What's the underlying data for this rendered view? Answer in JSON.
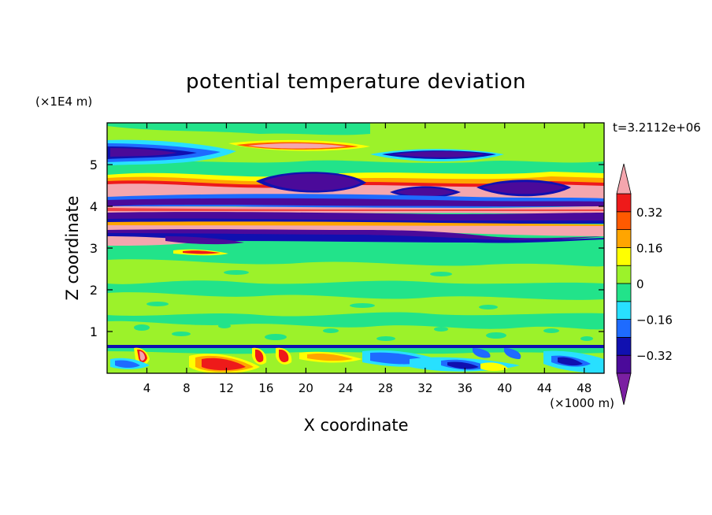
{
  "chart_data": {
    "type": "heatmap",
    "title": "potential temperature deviation",
    "xlabel": "X coordinate",
    "ylabel": "Z coordinate",
    "x_unit": "(×1000 m)",
    "y_unit": "(×1E4 m)",
    "time_label": "t=3.2112e+06",
    "xlim": [
      0,
      50
    ],
    "ylim": [
      0,
      6
    ],
    "x_ticks": [
      4,
      8,
      12,
      16,
      20,
      24,
      28,
      32,
      36,
      40,
      44,
      48
    ],
    "y_ticks": [
      1,
      2,
      3,
      4,
      5
    ],
    "colorbar": {
      "levels": [
        -0.4,
        -0.32,
        -0.24,
        -0.16,
        -0.08,
        0,
        0.08,
        0.16,
        0.24,
        0.32,
        0.4
      ],
      "labeled_levels": [
        0.32,
        0.16,
        0,
        -0.16,
        -0.32
      ],
      "colors": [
        "#7b1fa2",
        "#4b0a9a",
        "#1010b0",
        "#1e6bff",
        "#28e0ff",
        "#22e38a",
        "#9cf22a",
        "#ffff00",
        "#ffa500",
        "#ff5a00",
        "#ee1a1a",
        "#f4a6ae"
      ],
      "extend": "both"
    },
    "bands": [
      {
        "z": [
          0.0,
          0.6
        ],
        "description": "mixed near-surface layer: green with red/pink blobs near x≈4, 12, 17 and blue/purple cells between x≈28–48",
        "dominant_value": 0.0
      },
      {
        "z": [
          0.6,
          3.0
        ],
        "description": "mostly near-zero values (green/light green)",
        "dominant_value": 0.02
      },
      {
        "z": [
          3.0,
          4.6
        ],
        "description": "strong alternating layers of large negative (purple) and large positive (pink) deviation",
        "dominant_value": 0.36
      },
      {
        "z": [
          4.6,
          5.3
        ],
        "description": "positive pink/red band on left, purple lenses near x≈20, 30, 42",
        "dominant_value": -0.36
      },
      {
        "z": [
          5.3,
          6.0
        ],
        "description": "green background with purple/blue layer on left near z≈5.2",
        "dominant_value": 0.04
      }
    ]
  }
}
